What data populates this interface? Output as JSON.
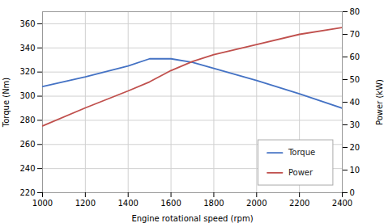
{
  "chart_data": {
    "type": "line",
    "xlabel": "Engine rotational speed (rpm)",
    "ylabel": "Torque (Nm)",
    "y2label": "Power (kW)",
    "x": [
      1000,
      1200,
      1400,
      1500,
      1600,
      1700,
      1800,
      2000,
      2200,
      2400
    ],
    "series": [
      {
        "name": "Torque",
        "color": "#4472C4",
        "values": [
          308,
          316,
          325,
          331,
          331,
          328,
          323,
          313,
          302,
          290
        ]
      },
      {
        "name": "Power",
        "color": "#C0504D",
        "axis": "y2",
        "values": [
          29.5,
          37.5,
          45,
          49,
          54,
          58,
          61,
          65.5,
          70,
          73
        ]
      }
    ],
    "xlim": [
      1000,
      2400
    ],
    "xticks": [
      1000,
      1200,
      1400,
      1600,
      1800,
      2000,
      2200,
      2400
    ],
    "ylim": [
      220,
      370
    ],
    "yticks": [
      220,
      240,
      260,
      280,
      300,
      320,
      340,
      360
    ],
    "y2lim": [
      0,
      80
    ],
    "y2ticks": [
      0,
      10,
      20,
      30,
      40,
      50,
      60,
      70,
      80
    ],
    "grid": true,
    "legend": "lower right"
  }
}
